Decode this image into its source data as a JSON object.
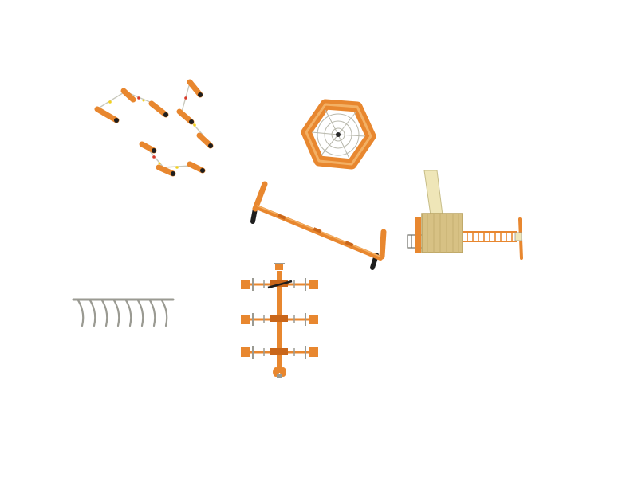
{
  "scene": {
    "background": "#ffffff",
    "colors": {
      "wood": "#e8872f",
      "wood_light": "#f3b064",
      "wood_dark": "#c9661a",
      "rubber": "#1e1e1e",
      "steel": "#9a9a92",
      "rope": "#c8c8bc",
      "deck": "#d7c184",
      "deck_shade": "#b9a261",
      "slide": "#efe6b8",
      "accent_red": "#d93a2a",
      "accent_yellow": "#f2d11f"
    },
    "objects": [
      {
        "name": "balance-log-course",
        "icon": "balance-logs-icon"
      },
      {
        "name": "hexagon-rope-net",
        "icon": "spider-net-icon"
      },
      {
        "name": "balance-beam-bench",
        "icon": "beam-icon"
      },
      {
        "name": "tower-with-slide",
        "icon": "play-tower-icon"
      },
      {
        "name": "curved-bar-rail",
        "icon": "hanging-bars-icon"
      },
      {
        "name": "triple-seesaw",
        "icon": "seesaw-icon"
      }
    ]
  }
}
